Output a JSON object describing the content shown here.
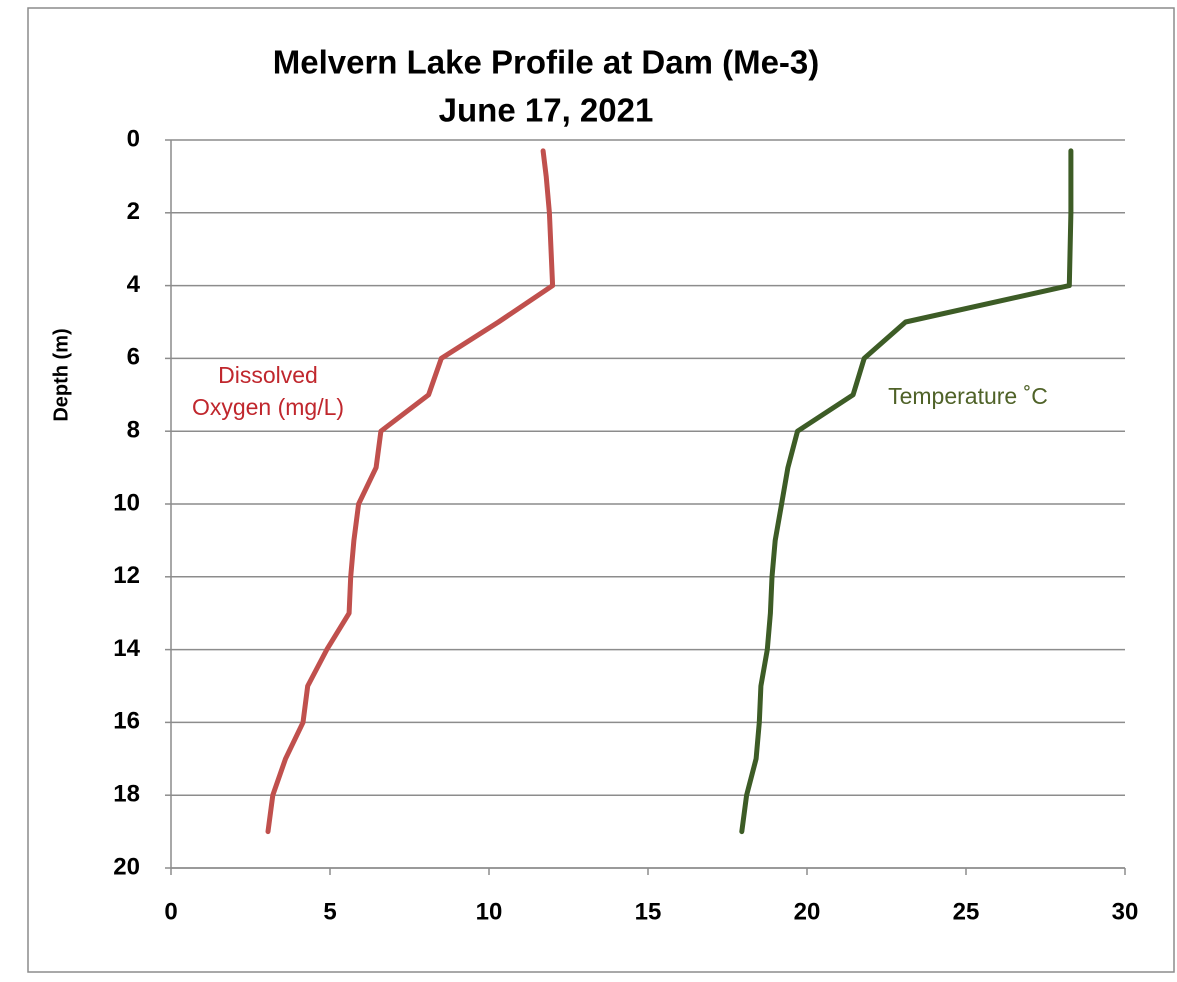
{
  "chart_data": {
    "type": "line",
    "title": "Melvern Lake Profile at Dam (Me-3)",
    "subtitle": "June 17, 2021",
    "y_label": "Depth (m)",
    "xlim": [
      0,
      30
    ],
    "xticks": [
      0,
      5,
      10,
      15,
      20,
      25,
      30
    ],
    "ylim": [
      0,
      20
    ],
    "yticks": [
      0,
      2,
      4,
      6,
      8,
      10,
      12,
      14,
      16,
      18,
      20
    ],
    "y_inverted": true,
    "grid": true,
    "series": [
      {
        "name": "Dissolved Oxygen (mg/L)",
        "color": "#c0504d",
        "x": [
          11.7,
          11.8,
          11.9,
          11.95,
          12.0,
          10.3,
          8.5,
          8.1,
          6.6,
          6.45,
          5.9,
          5.75,
          5.65,
          5.6,
          4.9,
          4.3,
          4.15,
          3.6,
          3.2,
          3.05
        ],
        "y": [
          0.3,
          1,
          2,
          3,
          4,
          5,
          6,
          7,
          8,
          9,
          10,
          11,
          12,
          13,
          14,
          15,
          16,
          17,
          18,
          19
        ]
      },
      {
        "name": "Temperature ˚C",
        "color": "#3d5c26",
        "x": [
          28.3,
          28.3,
          28.25,
          23.1,
          21.8,
          21.45,
          19.7,
          19.4,
          19.2,
          19.0,
          18.9,
          18.85,
          18.75,
          18.55,
          18.5,
          18.4,
          18.1,
          17.95
        ],
        "y": [
          0.3,
          2,
          4,
          5,
          6,
          7,
          8,
          9,
          10,
          11,
          12,
          13,
          14,
          15,
          16,
          17,
          18,
          19
        ]
      }
    ],
    "annotations": [
      {
        "lines": [
          "Dissolved",
          "Oxygen (mg/L)"
        ],
        "color": "#c0272d"
      },
      {
        "lines": [
          "Temperature ˚C"
        ],
        "color": "#4f6228"
      }
    ]
  }
}
